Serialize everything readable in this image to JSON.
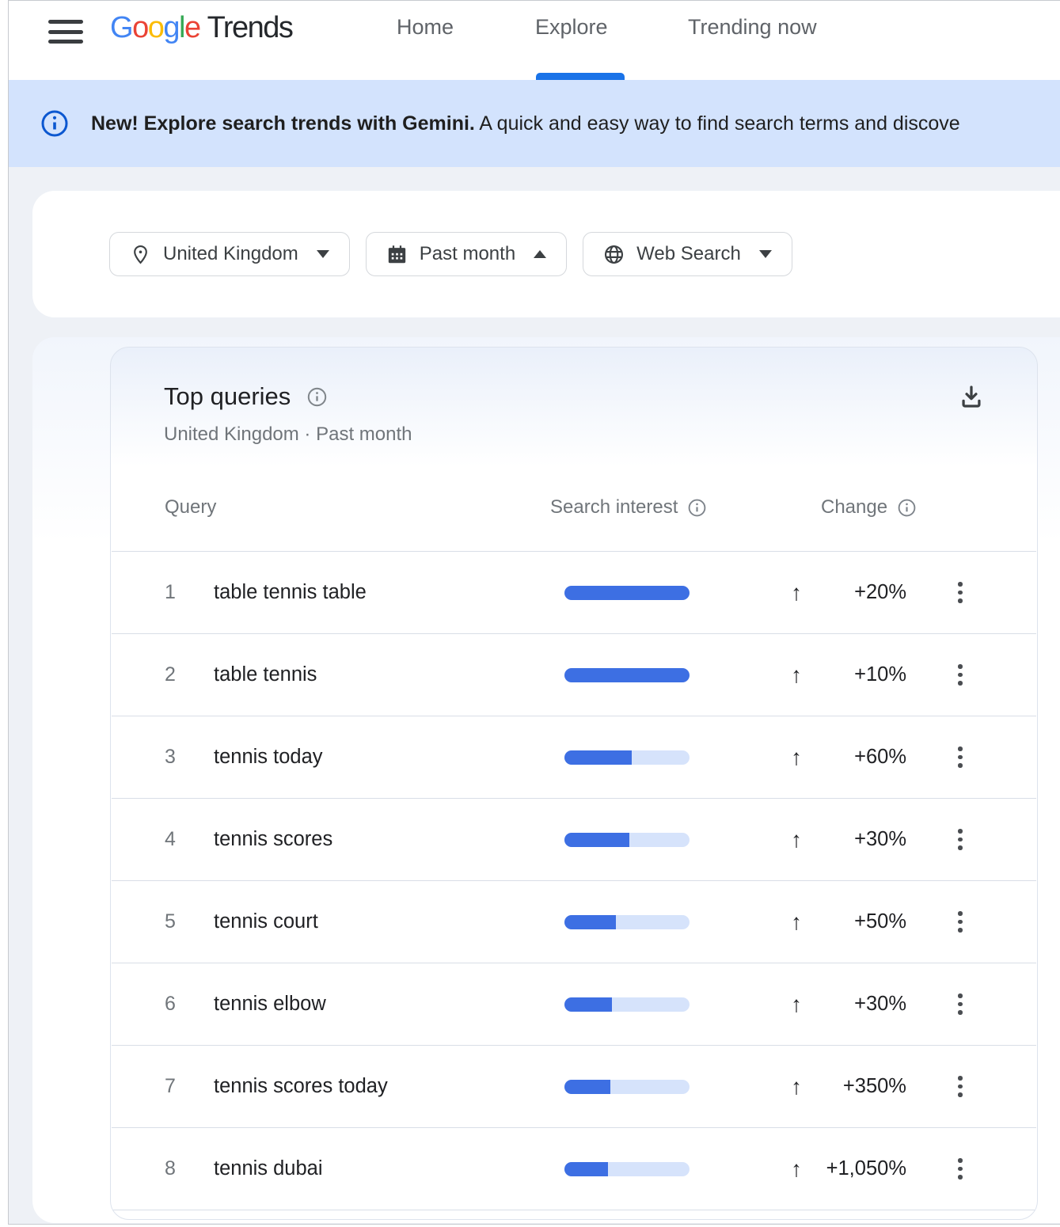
{
  "logo": {
    "letters": [
      {
        "ch": "G",
        "color": "#4285F4"
      },
      {
        "ch": "o",
        "color": "#EA4335"
      },
      {
        "ch": "o",
        "color": "#FBBC05"
      },
      {
        "ch": "g",
        "color": "#4285F4"
      },
      {
        "ch": "l",
        "color": "#34A853"
      },
      {
        "ch": "e",
        "color": "#EA4335"
      }
    ],
    "suffix": "Trends"
  },
  "nav": {
    "home": "Home",
    "explore": "Explore",
    "trending": "Trending now",
    "active": "Explore"
  },
  "banner": {
    "bold": "New! Explore search trends with Gemini.",
    "text": " A quick and easy way to find search terms and discove"
  },
  "filters": {
    "location": {
      "label": "United Kingdom",
      "state": "closed"
    },
    "time": {
      "label": "Past month",
      "state": "open"
    },
    "category": {
      "label": "Web Search",
      "state": "closed"
    }
  },
  "widget": {
    "title": "Top queries",
    "subtitle": "United Kingdom · Past month",
    "columns": {
      "query": "Query",
      "interest": "Search interest",
      "change": "Change"
    },
    "up_arrow": "↑"
  },
  "rows": [
    {
      "rank": "1",
      "query": "table tennis table",
      "interest_pct": 100,
      "change": "+20%"
    },
    {
      "rank": "2",
      "query": "table tennis",
      "interest_pct": 100,
      "change": "+10%"
    },
    {
      "rank": "3",
      "query": "tennis today",
      "interest_pct": 54,
      "change": "+60%"
    },
    {
      "rank": "4",
      "query": "tennis scores",
      "interest_pct": 52,
      "change": "+30%"
    },
    {
      "rank": "5",
      "query": "tennis court",
      "interest_pct": 41,
      "change": "+50%"
    },
    {
      "rank": "6",
      "query": "tennis elbow",
      "interest_pct": 38,
      "change": "+30%"
    },
    {
      "rank": "7",
      "query": "tennis scores today",
      "interest_pct": 37,
      "change": "+350%"
    },
    {
      "rank": "8",
      "query": "tennis dubai",
      "interest_pct": 35,
      "change": "+1,050%"
    }
  ],
  "colors": {
    "accent_blue": "#1a73e8",
    "bar_fill": "#3d6fe3",
    "bar_track": "#d6e3fb",
    "banner_bg": "#d3e3fd",
    "banner_icon": "#0b57d0"
  }
}
